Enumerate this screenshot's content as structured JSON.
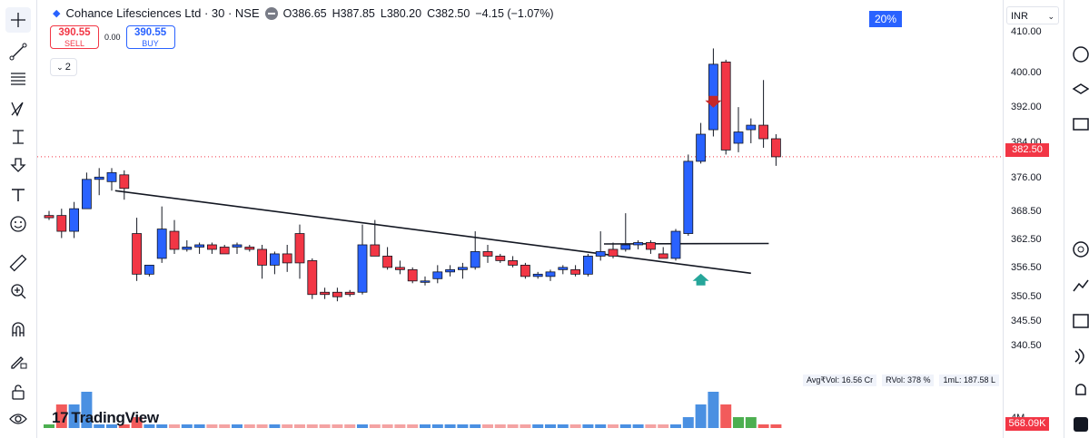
{
  "header": {
    "symbol_title": "Cohance Lifesciences Ltd · 30 · NSE",
    "open": "O386.65",
    "high": "H387.85",
    "low": "L380.20",
    "close": "C382.50",
    "change": "−4.15 (−1.07%)"
  },
  "trade": {
    "sell_price": "390.55",
    "sell_label": "SELL",
    "spread": "0.00",
    "buy_price": "390.55",
    "buy_label": "BUY"
  },
  "indicators_collapse": "2",
  "badge_percent": "20%",
  "currency": "INR",
  "price_axis": {
    "ticks": [
      "410.00",
      "400.00",
      "392.00",
      "384.00",
      "376.00",
      "368.50",
      "362.50",
      "356.50",
      "350.50",
      "345.50",
      "340.50"
    ],
    "last_price": "382.50",
    "volume_tick": "4M",
    "last_volume": "568.09K"
  },
  "volume_legend": {
    "avg_vol": "Avg₹Vol: 16.56 Cr",
    "rvol": "RVol: 378 %",
    "ml": "1mL: 187.58 L"
  },
  "logo_text": "TradingView",
  "colors": {
    "up": "#2962ff",
    "down": "#f23645",
    "last_price_line": "#f23645"
  },
  "toolbar_icons": [
    "crosshair-icon",
    "trend-line-icon",
    "fib-icon",
    "pattern-icon",
    "measure-icon",
    "arrow-down-icon",
    "text-icon",
    "emoji-icon",
    "ruler-icon",
    "zoom-in-icon",
    "magnet-icon",
    "lock-draw-icon",
    "lock-icon",
    "eye-icon"
  ],
  "chart_data": {
    "type": "candlestick",
    "x": [
      1,
      2,
      3,
      4,
      5,
      6,
      7,
      8,
      9,
      10,
      11,
      12,
      13,
      14,
      15,
      16,
      17,
      18,
      19,
      20,
      21,
      22,
      23,
      24,
      25,
      26,
      27,
      28,
      29,
      30,
      31,
      32,
      33,
      34,
      35,
      36,
      37,
      38,
      39,
      40,
      41,
      42,
      43,
      44,
      45,
      46,
      47,
      48,
      49,
      50,
      51,
      52,
      53,
      54,
      55,
      56,
      57,
      58,
      59
    ],
    "ohlc": [
      [
        369.5,
        370.5,
        368.5,
        369.0
      ],
      [
        369.5,
        371.0,
        364.5,
        366.0
      ],
      [
        366.0,
        372.5,
        364.5,
        371.0
      ],
      [
        371.0,
        379.0,
        371.0,
        377.5
      ],
      [
        377.5,
        380.0,
        374.0,
        378.0
      ],
      [
        377.0,
        380.0,
        375.0,
        379.0
      ],
      [
        378.5,
        379.5,
        373.0,
        375.5
      ],
      [
        365.5,
        369.0,
        355.0,
        356.5
      ],
      [
        356.5,
        358.0,
        356.0,
        358.5
      ],
      [
        360.0,
        371.5,
        359.0,
        366.5
      ],
      [
        366.0,
        368.5,
        361.0,
        362.0
      ],
      [
        362.0,
        364.0,
        361.5,
        362.5
      ],
      [
        362.5,
        363.5,
        361.0,
        363.0
      ],
      [
        363.0,
        363.5,
        361.0,
        362.0
      ],
      [
        362.5,
        363.0,
        361.5,
        361.0
      ],
      [
        362.5,
        363.5,
        361.0,
        363.0
      ],
      [
        362.5,
        363.0,
        361.5,
        362.0
      ],
      [
        362.0,
        363.0,
        355.5,
        358.5
      ],
      [
        358.5,
        361.5,
        356.5,
        361.0
      ],
      [
        361.0,
        363.0,
        357.0,
        359.0
      ],
      [
        365.5,
        367.5,
        355.5,
        359.0
      ],
      [
        359.5,
        360.0,
        351.0,
        352.0
      ],
      [
        352.5,
        353.5,
        351.0,
        352.0
      ],
      [
        352.5,
        353.5,
        350.5,
        351.5
      ],
      [
        352.5,
        353.0,
        351.5,
        352.0
      ],
      [
        352.5,
        367.5,
        352.0,
        363.0
      ],
      [
        363.0,
        368.5,
        360.5,
        360.5
      ],
      [
        360.5,
        362.5,
        357.5,
        358.0
      ],
      [
        358.0,
        359.5,
        356.5,
        357.5
      ],
      [
        357.5,
        358.0,
        354.5,
        355.0
      ],
      [
        355.0,
        356.0,
        354.0,
        355.0
      ],
      [
        355.5,
        358.5,
        354.5,
        357.0
      ],
      [
        357.0,
        358.5,
        356.0,
        357.5
      ],
      [
        357.5,
        359.0,
        355.5,
        358.0
      ],
      [
        358.0,
        366.0,
        357.5,
        361.5
      ],
      [
        361.5,
        363.0,
        359.0,
        360.5
      ],
      [
        360.5,
        361.0,
        359.0,
        359.5
      ],
      [
        359.5,
        360.5,
        358.0,
        358.5
      ],
      [
        358.5,
        359.0,
        355.5,
        356.0
      ],
      [
        356.0,
        357.0,
        355.5,
        356.5
      ],
      [
        356.0,
        357.5,
        355.0,
        357.0
      ],
      [
        357.5,
        358.5,
        356.5,
        358.0
      ],
      [
        357.5,
        358.5,
        356.0,
        356.5
      ],
      [
        356.5,
        361.0,
        356.0,
        360.5
      ],
      [
        360.5,
        366.0,
        359.5,
        361.5
      ],
      [
        362.0,
        363.5,
        360.0,
        360.5
      ],
      [
        362.0,
        370.0,
        361.5,
        363.0
      ],
      [
        363.0,
        364.0,
        362.0,
        363.5
      ],
      [
        363.5,
        364.0,
        361.0,
        362.0
      ],
      [
        361.0,
        362.5,
        360.0,
        360.0
      ],
      [
        360.0,
        366.5,
        359.5,
        366.0
      ],
      [
        365.5,
        383.0,
        365.0,
        381.5
      ],
      [
        381.5,
        390.0,
        381.0,
        387.5
      ],
      [
        388.5,
        406.5,
        387.0,
        403.0
      ],
      [
        403.5,
        404.0,
        383.0,
        384.0
      ],
      [
        385.5,
        393.5,
        383.5,
        388.0
      ],
      [
        388.5,
        391.0,
        385.5,
        389.5
      ],
      [
        389.5,
        399.5,
        384.5,
        386.5
      ],
      [
        386.5,
        387.5,
        380.5,
        382.5
      ]
    ],
    "volume": [
      "low",
      "high",
      "high",
      "very-high",
      "low",
      "low",
      "low",
      "medium",
      "low",
      "low",
      "low",
      "low",
      "low",
      "low",
      "low",
      "low",
      "low",
      "low",
      "low",
      "low",
      "low",
      "low",
      "low",
      "low",
      "low",
      "low",
      "low",
      "low",
      "low",
      "low",
      "low",
      "low",
      "low",
      "low",
      "low",
      "low",
      "low",
      "low",
      "low",
      "low",
      "low",
      "low",
      "low",
      "low",
      "low",
      "low",
      "low",
      "low",
      "low",
      "low",
      "low",
      "medium",
      "high",
      "very-high",
      "high",
      "medium",
      "medium",
      "low",
      "low"
    ],
    "ylim": [
      338,
      412
    ],
    "trendline_label": "",
    "grid": false
  }
}
